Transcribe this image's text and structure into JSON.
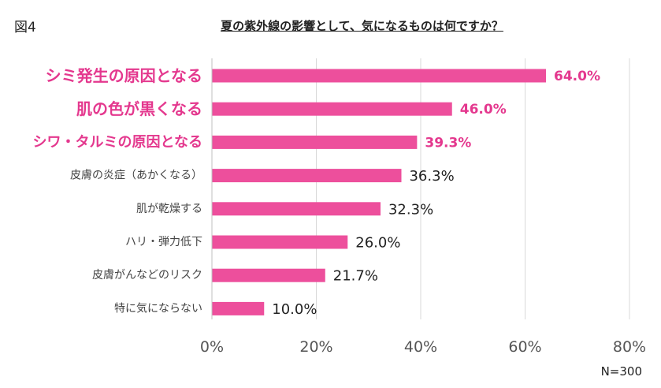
{
  "figure_label": "図4",
  "sample_note": "N=300",
  "colors": {
    "bar": "#ed4f9c",
    "highlight_text": "#e4388e",
    "text": "#333333",
    "grid": "#d9d9d9"
  },
  "chart_data": {
    "type": "bar",
    "orientation": "horizontal",
    "title": "夏の紫外線の影響として、気になるものは何ですか？",
    "categories": [
      "シミ発生の原因となる",
      "肌の色が黒くなる",
      "シワ・タルミの原因となる",
      "皮膚の炎症（あかくなる）",
      "肌が乾燥する",
      "ハリ・弾力低下",
      "皮膚がんなどのリスク",
      "特に気にならない"
    ],
    "values": [
      64.0,
      46.0,
      39.3,
      36.3,
      32.3,
      26.0,
      21.7,
      10.0
    ],
    "value_labels": [
      "64.0%",
      "46.0%",
      "39.3%",
      "36.3%",
      "32.3%",
      "26.0%",
      "21.7%",
      "10.0%"
    ],
    "highlighted": [
      true,
      true,
      true,
      false,
      false,
      false,
      false,
      false
    ],
    "x_ticks": [
      0,
      20,
      40,
      60,
      80
    ],
    "x_tick_labels": [
      "0%",
      "20%",
      "40%",
      "60%",
      "80%"
    ],
    "xlim": [
      0,
      80
    ],
    "grid": true,
    "legend": false
  }
}
